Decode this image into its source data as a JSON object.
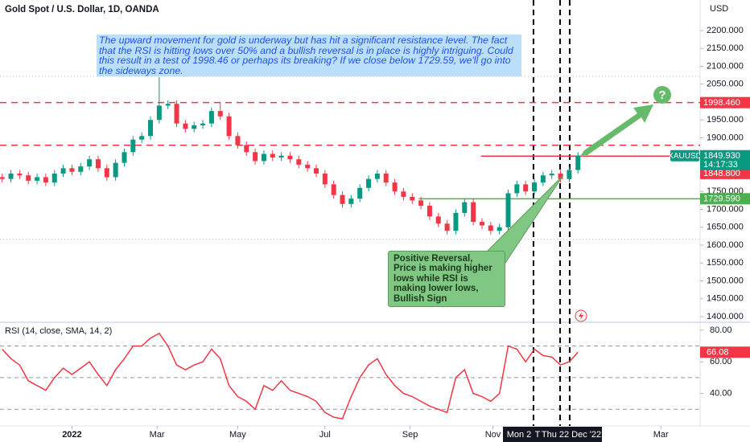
{
  "header": {
    "title": "Gold Spot / U.S. Dollar, 1D, OANDA",
    "currency": "USD"
  },
  "chart_data": [
    {
      "type": "candlestick",
      "x": [
        0,
        4,
        8,
        12,
        16,
        20,
        24,
        28,
        32,
        36,
        40,
        44,
        48,
        52,
        56,
        60,
        64,
        68,
        72,
        76,
        80,
        84,
        88,
        92,
        96,
        100,
        104,
        108,
        112,
        116,
        120,
        124,
        128,
        132,
        136,
        140,
        144,
        148,
        152,
        156,
        160,
        164,
        168,
        172,
        176,
        180,
        184,
        188,
        192,
        196,
        200,
        204,
        208,
        212,
        216,
        220,
        224,
        228,
        232,
        236,
        240,
        244,
        248,
        252,
        256,
        260,
        264
      ],
      "open": [
        1790,
        1785,
        1800,
        1795,
        1780,
        1790,
        1775,
        1800,
        1815,
        1805,
        1820,
        1840,
        1815,
        1790,
        1830,
        1860,
        1895,
        1905,
        1950,
        1990,
        1995,
        1940,
        1925,
        1935,
        1940,
        1975,
        1960,
        1905,
        1880,
        1860,
        1835,
        1855,
        1845,
        1850,
        1840,
        1825,
        1815,
        1800,
        1770,
        1740,
        1715,
        1730,
        1760,
        1785,
        1800,
        1775,
        1750,
        1735,
        1725,
        1710,
        1680,
        1660,
        1640,
        1690,
        1720,
        1665,
        1655,
        1640,
        1650,
        1745,
        1770,
        1750,
        1775,
        1795,
        1800,
        1785,
        1810
      ],
      "high": [
        1800,
        1810,
        1810,
        1805,
        1800,
        1800,
        1810,
        1825,
        1825,
        1830,
        1850,
        1850,
        1825,
        1840,
        1870,
        1905,
        1915,
        1960,
        2070,
        2005,
        2005,
        1950,
        1945,
        1950,
        1985,
        1998,
        1970,
        1915,
        1890,
        1870,
        1865,
        1865,
        1860,
        1860,
        1850,
        1835,
        1825,
        1810,
        1780,
        1750,
        1740,
        1770,
        1795,
        1810,
        1810,
        1785,
        1760,
        1745,
        1735,
        1720,
        1690,
        1670,
        1700,
        1730,
        1730,
        1675,
        1665,
        1660,
        1755,
        1780,
        1780,
        1785,
        1805,
        1810,
        1810,
        1820,
        1860
      ],
      "low": [
        1775,
        1775,
        1785,
        1770,
        1770,
        1765,
        1765,
        1790,
        1795,
        1795,
        1810,
        1805,
        1780,
        1780,
        1820,
        1850,
        1885,
        1895,
        1940,
        1980,
        1930,
        1915,
        1915,
        1925,
        1930,
        1950,
        1895,
        1870,
        1850,
        1825,
        1825,
        1835,
        1835,
        1830,
        1815,
        1805,
        1790,
        1760,
        1730,
        1705,
        1705,
        1720,
        1750,
        1775,
        1765,
        1740,
        1725,
        1715,
        1700,
        1670,
        1650,
        1630,
        1630,
        1680,
        1655,
        1645,
        1630,
        1630,
        1640,
        1735,
        1740,
        1740,
        1765,
        1785,
        1775,
        1775,
        1800
      ],
      "close": [
        1785,
        1800,
        1795,
        1780,
        1790,
        1775,
        1800,
        1815,
        1805,
        1820,
        1840,
        1815,
        1790,
        1830,
        1860,
        1895,
        1905,
        1950,
        1990,
        1995,
        1940,
        1925,
        1935,
        1940,
        1975,
        1960,
        1905,
        1880,
        1860,
        1835,
        1855,
        1845,
        1850,
        1840,
        1825,
        1815,
        1800,
        1770,
        1740,
        1715,
        1730,
        1760,
        1785,
        1800,
        1775,
        1750,
        1735,
        1725,
        1710,
        1680,
        1660,
        1640,
        1690,
        1720,
        1665,
        1655,
        1640,
        1650,
        1745,
        1770,
        1750,
        1775,
        1795,
        1800,
        1785,
        1810,
        1849.93
      ],
      "up_color": "#089981",
      "down_color": "#f23645",
      "xlim": [
        -1,
        320
      ],
      "xticks": [
        {
          "value": 32,
          "label": "2022"
        },
        {
          "value": 71,
          "label": "Mar"
        },
        {
          "value": 108,
          "label": "May"
        },
        {
          "value": 148,
          "label": "Jul"
        },
        {
          "value": 187,
          "label": "Sep"
        },
        {
          "value": 225,
          "label": "Nov"
        },
        {
          "value": 302,
          "label": "Mar"
        }
      ],
      "ylim": [
        1386.5,
        2285.4
      ],
      "yticks": [
        {
          "value": 2200,
          "label": "2200.000"
        },
        {
          "value": 2150,
          "label": "2150.000"
        },
        {
          "value": 2100,
          "label": "2100.000"
        },
        {
          "value": 2050,
          "label": "2050.000"
        },
        {
          "value": 1950,
          "label": "1950.000"
        },
        {
          "value": 1900,
          "label": "1900.000"
        },
        {
          "value": 1750,
          "label": "1750.000"
        },
        {
          "value": 1700,
          "label": "1700.000"
        },
        {
          "value": 1650,
          "label": "1650.000"
        },
        {
          "value": 1600,
          "label": "1600.000"
        },
        {
          "value": 1550,
          "label": "1550.000"
        },
        {
          "value": 1500,
          "label": "1500.000"
        },
        {
          "value": 1450,
          "label": "1450.000"
        },
        {
          "value": 1400,
          "label": "1400.000"
        }
      ],
      "levels": [
        {
          "value": 2072,
          "color": "#b2b5be",
          "style": "dotted"
        },
        {
          "value": 1616,
          "color": "#b2b5be",
          "style": "dotted"
        },
        {
          "value": 1998.46,
          "label": "1998.460",
          "color": "#f23645",
          "style": "dashed"
        },
        {
          "value": 1879.3,
          "label": "1879.300",
          "color": "#f23645",
          "style": "dashed"
        },
        {
          "value": 1848.8,
          "label": "1848.800",
          "color": "#f23645",
          "style": "solid",
          "start": 219.5
        },
        {
          "value": 1729.59,
          "label": "1729.590",
          "color": "#4caf50",
          "style": "solid",
          "start": 191
        }
      ],
      "last_price": {
        "value": 1849.93,
        "label": "1849.930",
        "symbol": "XAUUSD",
        "countdown": "14:17:33",
        "color": "#089981"
      },
      "vlines": [
        243.6,
        255.8,
        260.2
      ]
    },
    {
      "type": "line",
      "title": "RSI (14, close, SMA, 14, 2)",
      "color": "#f23645",
      "values": [
        68,
        62,
        58,
        48,
        45,
        42,
        50,
        56,
        52,
        56,
        60,
        52,
        45,
        55,
        62,
        70,
        70,
        75,
        78,
        70,
        58,
        55,
        58,
        60,
        68,
        62,
        45,
        38,
        35,
        30,
        45,
        42,
        48,
        42,
        40,
        38,
        35,
        28,
        25,
        24,
        38,
        50,
        58,
        62,
        52,
        45,
        40,
        38,
        35,
        32,
        30,
        28,
        50,
        55,
        40,
        38,
        35,
        40,
        70,
        68,
        60,
        68,
        64,
        63,
        58,
        60,
        66.08
      ],
      "ylim": [
        21,
        84
      ],
      "yticks": [
        {
          "value": 80,
          "label": "80.00"
        },
        {
          "value": 60,
          "label": "60.00"
        },
        {
          "value": 40,
          "label": "40.00"
        }
      ],
      "levels": [
        70,
        50,
        30
      ],
      "last": {
        "value": 66.08,
        "label": "66.08"
      }
    }
  ],
  "time_cursor": [
    "Mon 2",
    "T",
    "Thu 22 Dec '22"
  ],
  "annotations": {
    "note": "The upward movement for gold is underway but has hit a significant resistance level. The fact that the RSI is hitting lows over 50% and a bullish reversal is in place is highly intriguing. Could this result in a test of 1998.46 or perhaps its breaking? If we close below 1729.59, we'll go into the sideways zone.",
    "callout": [
      "Positive Reversal,",
      "Price is making higher",
      "lows while RSI is",
      "making lower lows,",
      "Bullish Sign"
    ],
    "question": "?"
  }
}
